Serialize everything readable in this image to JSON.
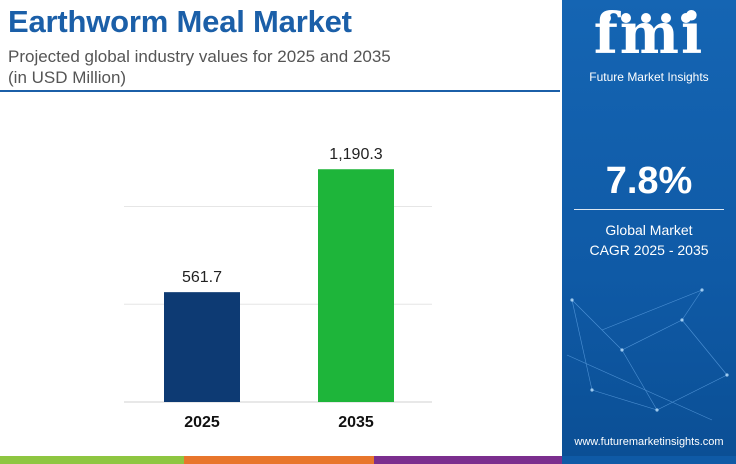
{
  "header": {
    "title": "Earthworm Meal Market",
    "subtitle_line1": "Projected global industry values for 2025 and 2035",
    "subtitle_line2": "(in USD Million)"
  },
  "chart_data": {
    "type": "bar",
    "categories": [
      "2025",
      "2035"
    ],
    "values": [
      561.7,
      1190.3
    ],
    "value_labels": [
      "561.7",
      "1,190.3"
    ],
    "bar_colors": [
      "#0d3a73",
      "#1eb53a"
    ],
    "title": "Earthworm Meal Market",
    "xlabel": "",
    "ylabel": "",
    "ylim": [
      0,
      1350
    ],
    "grid": true,
    "legend": "none"
  },
  "sidebar": {
    "brand_letters": "fmi",
    "brand_caption": "Future Market Insights",
    "cagr_value": "7.8%",
    "cagr_label_line1": "Global Market",
    "cagr_label_line2": "CAGR 2025 - 2035",
    "website": "www.futuremarketinsights.com"
  },
  "footer": {
    "colors": [
      "#8ec641",
      "#e8762c",
      "#7b2e8e",
      "#0f5aa6"
    ]
  },
  "colors": {
    "title": "#1b5fa8",
    "sidebar_bg": "#0f5aa6"
  }
}
